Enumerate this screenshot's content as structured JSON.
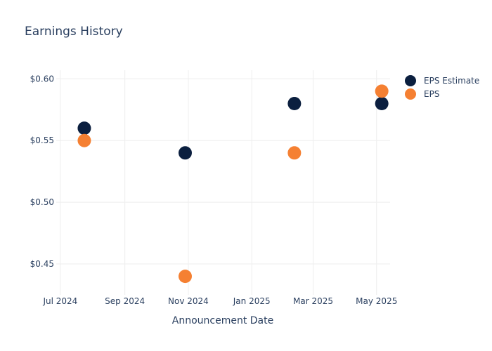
{
  "chart_data": {
    "type": "scatter",
    "title": "Earnings History",
    "xlabel": "Announcement Date",
    "ylabel": "",
    "x_ticks": [
      {
        "date": "2024-07-01",
        "label": "Jul 2024"
      },
      {
        "date": "2024-09-01",
        "label": "Sep 2024"
      },
      {
        "date": "2024-11-01",
        "label": "Nov 2024"
      },
      {
        "date": "2025-01-01",
        "label": "Jan 2025"
      },
      {
        "date": "2025-03-01",
        "label": "Mar 2025"
      },
      {
        "date": "2025-05-01",
        "label": "May 2025"
      }
    ],
    "y_ticks": [
      {
        "value": 0.45,
        "label": "$0.45"
      },
      {
        "value": 0.5,
        "label": "$0.50"
      },
      {
        "value": 0.55,
        "label": "$0.55"
      },
      {
        "value": 0.6,
        "label": "$0.60"
      }
    ],
    "xlim": [
      "2024-06-27",
      "2025-05-14"
    ],
    "ylim": [
      0.425,
      0.607
    ],
    "grid": true,
    "legend": "top-right",
    "series": [
      {
        "name": "EPS Estimate",
        "color": "#0b1f3f",
        "points": [
          {
            "x": "2024-07-24",
            "y": 0.56
          },
          {
            "x": "2024-10-29",
            "y": 0.54
          },
          {
            "x": "2025-02-11",
            "y": 0.58
          },
          {
            "x": "2025-05-06",
            "y": 0.58
          }
        ]
      },
      {
        "name": "EPS",
        "color": "#f58032",
        "points": [
          {
            "x": "2024-07-24",
            "y": 0.55
          },
          {
            "x": "2024-10-29",
            "y": 0.44
          },
          {
            "x": "2025-02-11",
            "y": 0.54
          },
          {
            "x": "2025-05-06",
            "y": 0.59
          }
        ]
      }
    ]
  }
}
